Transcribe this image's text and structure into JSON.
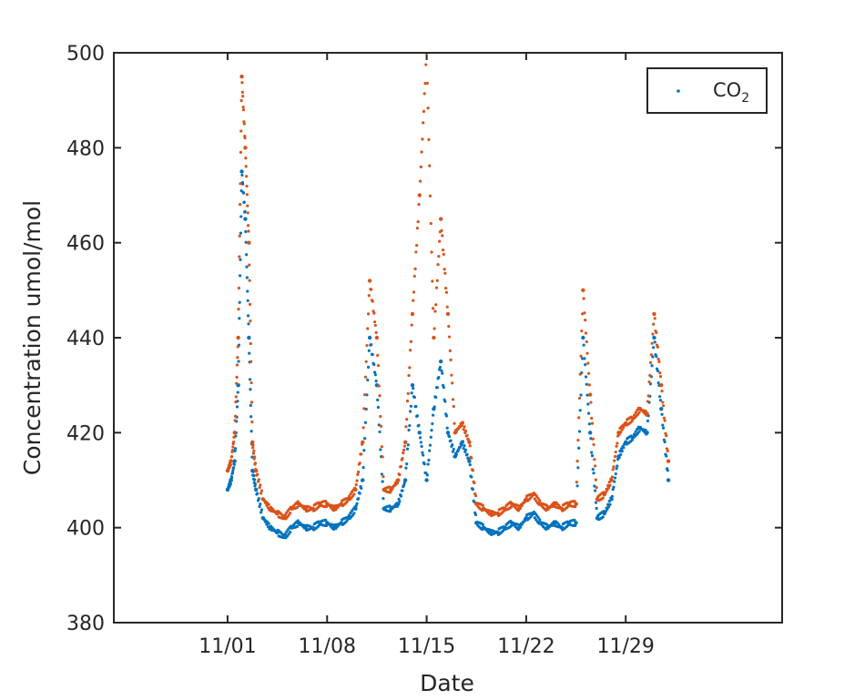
{
  "chart_data": {
    "type": "scatter",
    "title": "",
    "xlabel": "Date",
    "ylabel": "Concentration umol/mol",
    "ylim": [
      380,
      500
    ],
    "yticks": [
      380,
      400,
      420,
      440,
      460,
      480,
      500
    ],
    "xlim": [
      "2023-10-24",
      "2023-12-10"
    ],
    "xticks": [
      {
        "date": "2023-11-01",
        "label": "11/01"
      },
      {
        "date": "2023-11-08",
        "label": "11/08"
      },
      {
        "date": "2023-11-15",
        "label": "11/15"
      },
      {
        "date": "2023-11-22",
        "label": "11/22"
      },
      {
        "date": "2023-11-29",
        "label": "11/29"
      }
    ],
    "legend": {
      "placement": "top-right",
      "label_main": "CO",
      "label_sub": "2"
    },
    "colors": {
      "series_1": "#0072BD",
      "series_2": "#D95319",
      "axes": "#262626"
    },
    "series": [
      {
        "name": "CO2",
        "x": [
          "2023-11-01 00:00",
          "2023-11-01 06:00",
          "2023-11-01 12:00",
          "2023-11-01 18:00",
          "2023-11-02 00:00",
          "2023-11-02 06:00",
          "2023-11-02 12:00",
          "2023-11-02 18:00",
          "2023-11-03 00:00",
          "2023-11-03 12:00",
          "2023-11-04 00:00",
          "2023-11-04 12:00",
          "2023-11-05 00:00",
          "2023-11-05 12:00",
          "2023-11-06 00:00",
          "2023-11-06 12:00",
          "2023-11-07 00:00",
          "2023-11-07 12:00",
          "2023-11-08 00:00",
          "2023-11-08 12:00",
          "2023-11-09 00:00",
          "2023-11-09 12:00",
          "2023-11-10 00:00",
          "2023-11-10 12:00",
          "2023-11-11 00:00",
          "2023-11-11 12:00",
          "2023-11-12 00:00",
          "2023-11-12 12:00",
          "2023-11-13 00:00",
          "2023-11-13 12:00",
          "2023-11-14 00:00",
          "2023-11-14 12:00",
          "2023-11-15 00:00",
          "2023-11-15 12:00",
          "2023-11-16 00:00",
          "2023-11-16 12:00",
          "2023-11-17 00:00",
          "2023-11-17 12:00",
          "2023-11-18 00:00",
          "2023-11-18 12:00",
          "2023-11-19 00:00",
          "2023-11-19 12:00",
          "2023-11-20 00:00",
          "2023-11-20 12:00",
          "2023-11-21 00:00",
          "2023-11-21 12:00",
          "2023-11-22 00:00",
          "2023-11-22 12:00",
          "2023-11-23 00:00",
          "2023-11-23 12:00",
          "2023-11-24 00:00",
          "2023-11-24 12:00",
          "2023-11-25 00:00",
          "2023-11-25 12:00",
          "2023-11-26 00:00",
          "2023-11-26 12:00",
          "2023-11-27 00:00",
          "2023-11-27 12:00",
          "2023-11-28 00:00",
          "2023-11-28 12:00",
          "2023-11-29 00:00",
          "2023-11-29 12:00",
          "2023-11-30 00:00",
          "2023-11-30 12:00",
          "2023-12-01 00:00",
          "2023-12-01 12:00",
          "2023-12-02 00:00"
        ],
        "y": [
          408,
          410,
          414,
          430,
          475,
          465,
          440,
          412,
          408,
          402,
          400,
          399,
          398,
          400,
          401,
          400,
          400,
          401,
          401,
          400,
          401,
          402,
          404,
          410,
          440,
          430,
          404,
          404,
          405,
          410,
          430,
          420,
          410,
          425,
          435,
          420,
          415,
          418,
          414,
          401,
          400,
          399,
          399,
          400,
          401,
          400,
          402,
          403,
          401,
          400,
          401,
          400,
          401,
          401,
          440,
          420,
          402,
          403,
          406,
          415,
          418,
          419,
          421,
          420,
          440,
          425,
          410
        ]
      },
      {
        "name": "CO2",
        "x": [
          "2023-11-01 00:00",
          "2023-11-01 06:00",
          "2023-11-01 12:00",
          "2023-11-01 18:00",
          "2023-11-02 00:00",
          "2023-11-02 06:00",
          "2023-11-02 12:00",
          "2023-11-02 18:00",
          "2023-11-03 00:00",
          "2023-11-03 12:00",
          "2023-11-04 00:00",
          "2023-11-04 12:00",
          "2023-11-05 00:00",
          "2023-11-05 12:00",
          "2023-11-06 00:00",
          "2023-11-06 12:00",
          "2023-11-07 00:00",
          "2023-11-07 12:00",
          "2023-11-08 00:00",
          "2023-11-08 12:00",
          "2023-11-09 00:00",
          "2023-11-09 12:00",
          "2023-11-10 00:00",
          "2023-11-10 12:00",
          "2023-11-11 00:00",
          "2023-11-11 12:00",
          "2023-11-12 00:00",
          "2023-11-12 12:00",
          "2023-11-13 00:00",
          "2023-11-13 12:00",
          "2023-11-14 00:00",
          "2023-11-14 12:00",
          "2023-11-15 00:00",
          "2023-11-15 12:00",
          "2023-11-16 00:00",
          "2023-11-16 12:00",
          "2023-11-17 00:00",
          "2023-11-17 12:00",
          "2023-11-18 00:00",
          "2023-11-18 12:00",
          "2023-11-19 00:00",
          "2023-11-19 12:00",
          "2023-11-20 00:00",
          "2023-11-20 12:00",
          "2023-11-21 00:00",
          "2023-11-21 12:00",
          "2023-11-22 00:00",
          "2023-11-22 12:00",
          "2023-11-23 00:00",
          "2023-11-23 12:00",
          "2023-11-24 00:00",
          "2023-11-24 12:00",
          "2023-11-25 00:00",
          "2023-11-25 12:00",
          "2023-11-26 00:00",
          "2023-11-26 12:00",
          "2023-11-27 00:00",
          "2023-11-27 12:00",
          "2023-11-28 00:00",
          "2023-11-28 12:00",
          "2023-11-29 00:00",
          "2023-11-29 12:00",
          "2023-11-30 00:00",
          "2023-11-30 12:00",
          "2023-12-01 00:00",
          "2023-12-01 12:00",
          "2023-12-02 00:00"
        ],
        "y": [
          412,
          414,
          420,
          440,
          495,
          480,
          460,
          418,
          412,
          406,
          404,
          403,
          402,
          404,
          405,
          404,
          404,
          405,
          405,
          404,
          405,
          406,
          408,
          418,
          452,
          440,
          408,
          408,
          410,
          418,
          445,
          470,
          500,
          440,
          465,
          445,
          420,
          422,
          418,
          405,
          404,
          403,
          403,
          404,
          405,
          404,
          406,
          407,
          405,
          404,
          405,
          404,
          405,
          405,
          450,
          428,
          406,
          407,
          410,
          420,
          422,
          423,
          425,
          424,
          445,
          430,
          414
        ]
      }
    ]
  }
}
